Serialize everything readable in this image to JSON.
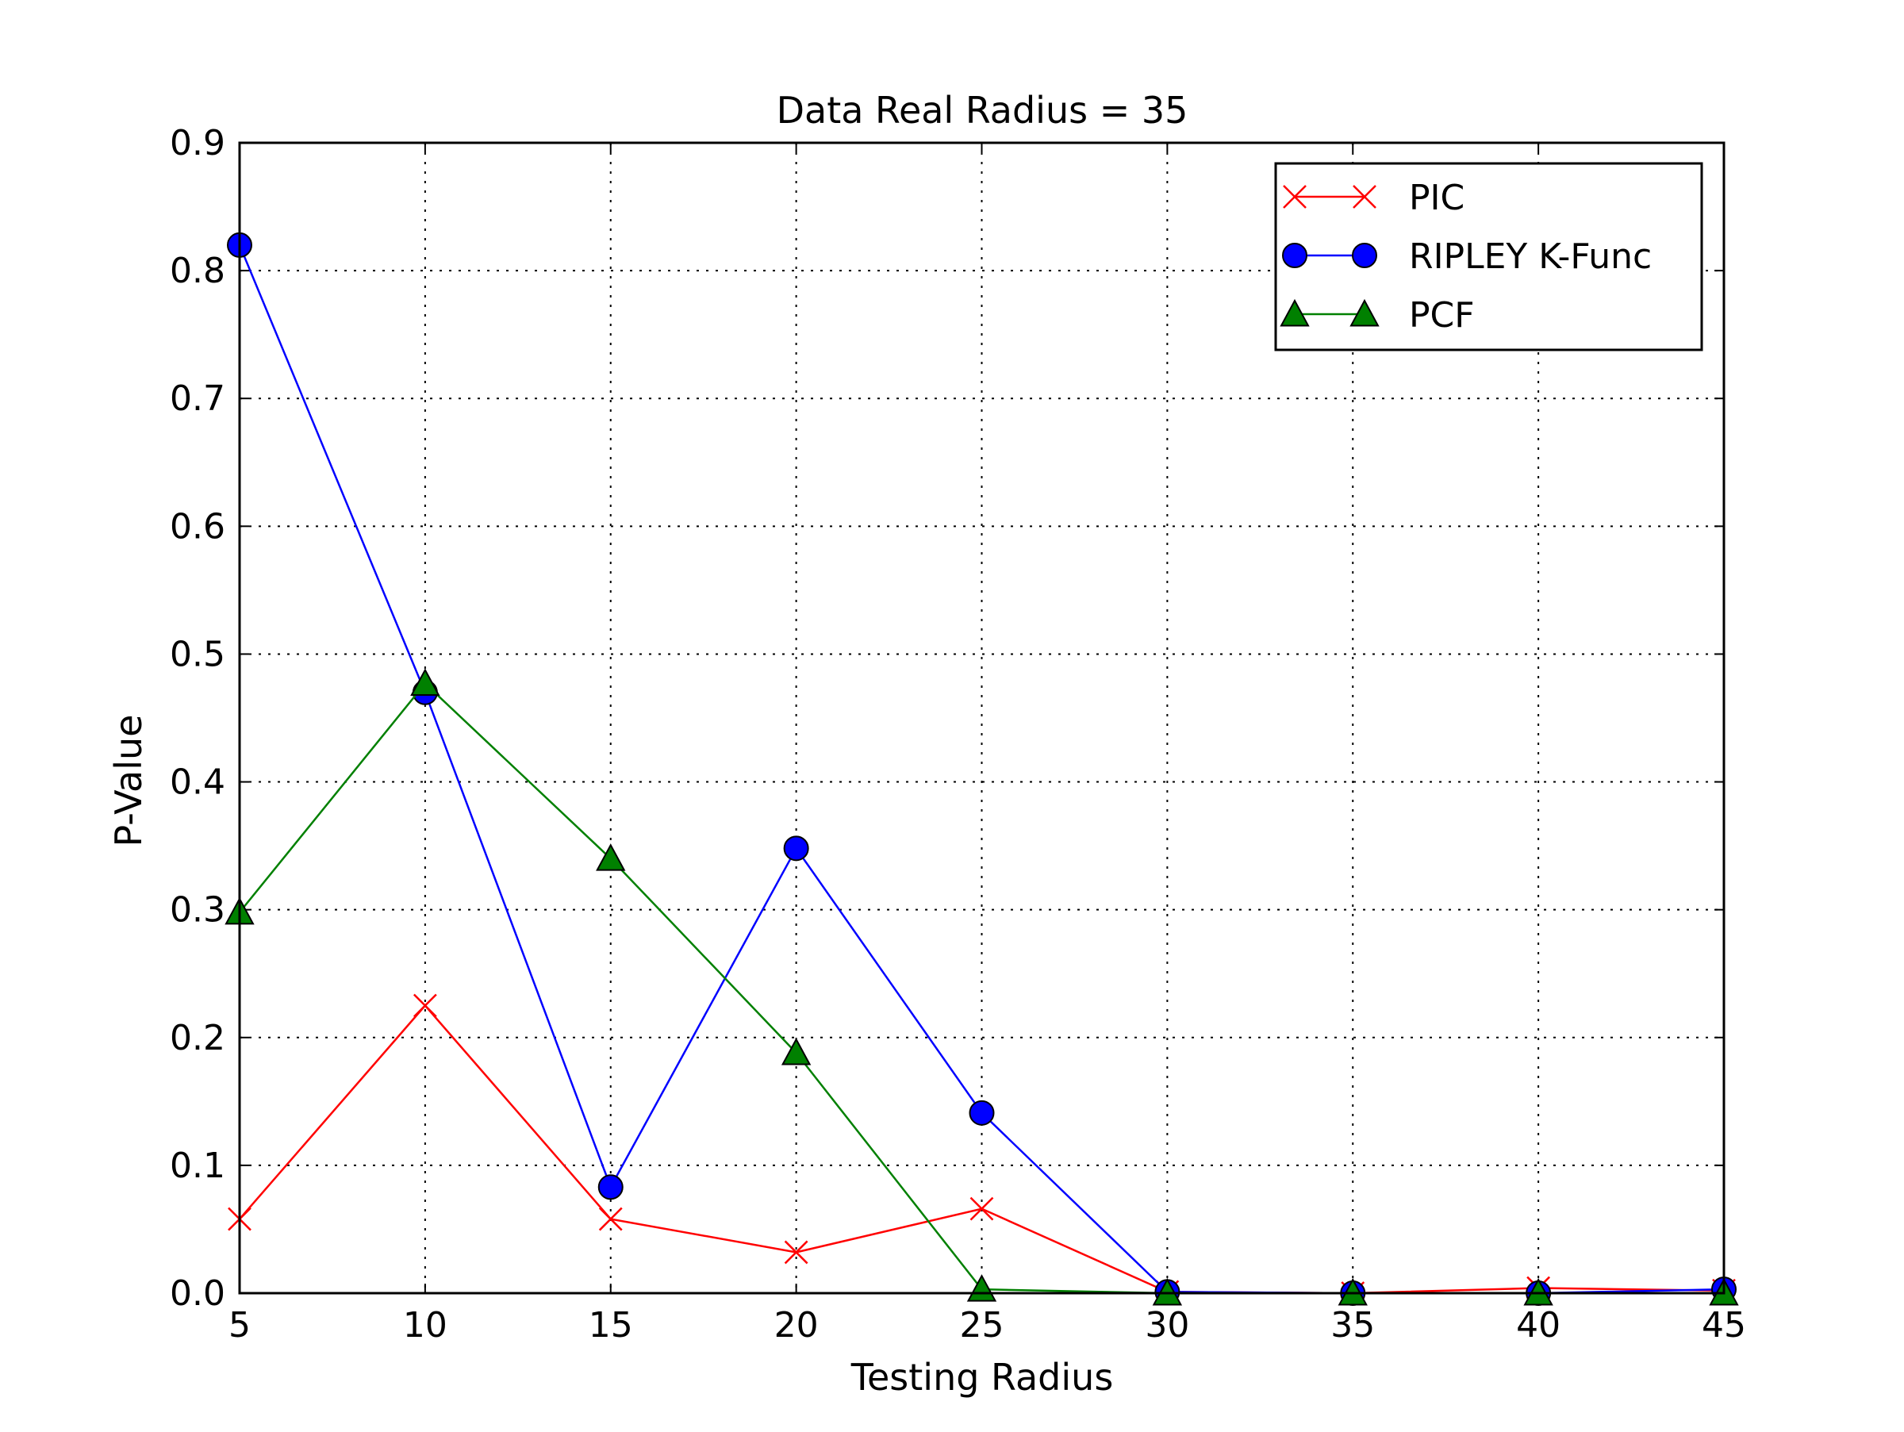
{
  "chart_data": {
    "type": "line",
    "title": "Data Real Radius = 35",
    "xlabel": "Testing Radius",
    "ylabel": "P-Value",
    "x": [
      5,
      10,
      15,
      20,
      25,
      30,
      35,
      40,
      45
    ],
    "xlim": [
      5,
      45
    ],
    "ylim": [
      0,
      0.9
    ],
    "xticks": [
      "5",
      "10",
      "15",
      "20",
      "25",
      "30",
      "35",
      "40",
      "45"
    ],
    "yticks": [
      "0.0",
      "0.1",
      "0.2",
      "0.3",
      "0.4",
      "0.5",
      "0.6",
      "0.7",
      "0.8",
      "0.9"
    ],
    "grid": true,
    "legend_position": "top-right",
    "series": [
      {
        "name": "PIC",
        "color": "#ff0000",
        "marker": "x",
        "values": [
          0.058,
          0.225,
          0.058,
          0.032,
          0.066,
          0.001,
          0.0,
          0.004,
          0.002
        ]
      },
      {
        "name": "RIPLEY K-Func",
        "color": "#0000ff",
        "marker": "circle",
        "values": [
          0.82,
          0.47,
          0.083,
          0.348,
          0.141,
          0.001,
          0.0,
          0.0,
          0.003
        ]
      },
      {
        "name": "PCF",
        "color": "#008000",
        "marker": "triangle",
        "values": [
          0.298,
          0.477,
          0.34,
          0.188,
          0.003,
          0.0,
          0.0,
          0.0,
          0.0
        ]
      }
    ]
  }
}
